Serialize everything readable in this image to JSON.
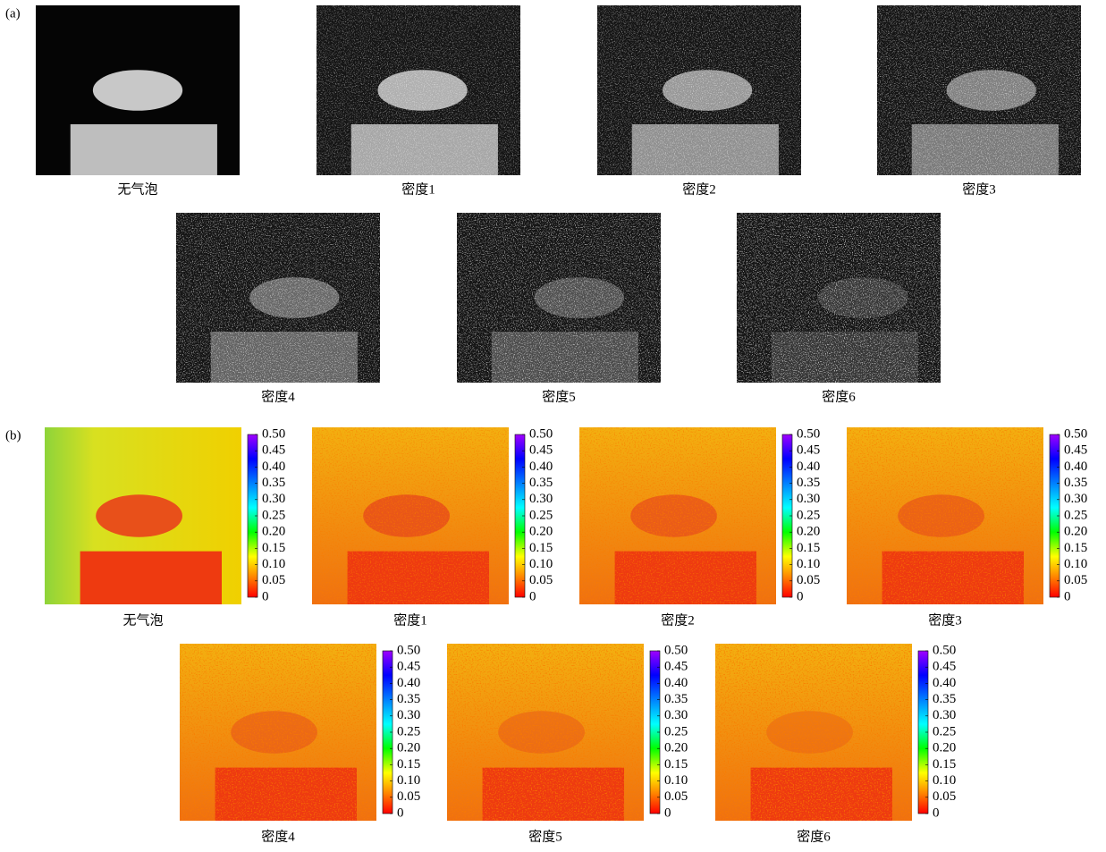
{
  "panel_a": {
    "label": "(a)",
    "captions": [
      "无气泡",
      "密度1",
      "密度2",
      "密度3",
      "密度4",
      "密度5",
      "密度6"
    ]
  },
  "panel_b": {
    "label": "(b)",
    "captions": [
      "无气泡",
      "密度1",
      "密度2",
      "密度3",
      "密度4",
      "密度5",
      "密度6"
    ],
    "colorbar": {
      "range": [
        0,
        0.5
      ],
      "ticks": [
        0,
        0.05,
        {
          "value": 0.1,
          "label": "0.10"
        },
        0.15,
        {
          "value": 0.2,
          "label": "0.20"
        },
        0.25,
        {
          "value": 0.3,
          "label": "0.30"
        },
        0.35,
        {
          "value": 0.4,
          "label": "0.40"
        },
        0.45,
        {
          "value": 0.5,
          "label": "0.50"
        }
      ]
    }
  }
}
